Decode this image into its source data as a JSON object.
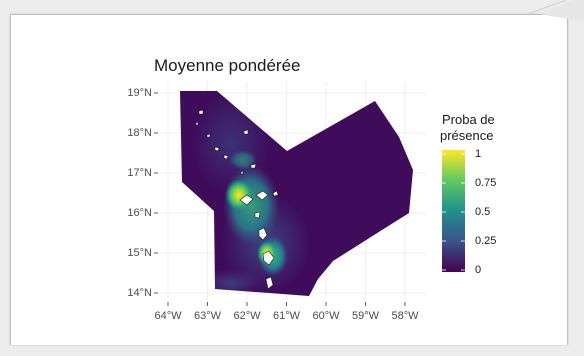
{
  "figure": {
    "title": "Moyenne pondérée",
    "y_ticks": [
      {
        "value": 19,
        "label": "19°N"
      },
      {
        "value": 18,
        "label": "18°N"
      },
      {
        "value": 17,
        "label": "17°N"
      },
      {
        "value": 16,
        "label": "16°N"
      },
      {
        "value": 15,
        "label": "15°N"
      },
      {
        "value": 14,
        "label": "14°N"
      }
    ],
    "x_ticks": [
      {
        "value": -64,
        "label": "64°W"
      },
      {
        "value": -63,
        "label": "63°W"
      },
      {
        "value": -62,
        "label": "62°W"
      },
      {
        "value": -61,
        "label": "61°W"
      },
      {
        "value": -60,
        "label": "60°W"
      },
      {
        "value": -59,
        "label": "59°W"
      },
      {
        "value": -58,
        "label": "58°W"
      }
    ]
  },
  "legend": {
    "title_line1": "Proba de",
    "title_line2": "présence",
    "ticks": [
      {
        "value": 1,
        "label": "1"
      },
      {
        "value": 0.75,
        "label": "0.75"
      },
      {
        "value": 0.5,
        "label": "0.5"
      },
      {
        "value": 0.25,
        "label": "0.25"
      },
      {
        "value": 0,
        "label": "0"
      }
    ],
    "colors": [
      "#440154",
      "#3b528b",
      "#21908c",
      "#5ec962",
      "#fde725"
    ]
  },
  "map_colors": {
    "background": "#3f0b5b",
    "land": "#ffffff",
    "grid": "#ebebeb"
  }
}
